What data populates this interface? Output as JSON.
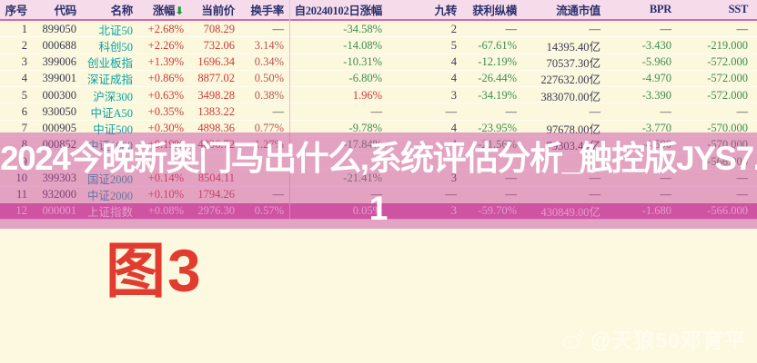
{
  "table": {
    "columns": [
      {
        "key": "seq",
        "label": "序号"
      },
      {
        "key": "code",
        "label": "代码"
      },
      {
        "key": "name",
        "label": "名称"
      },
      {
        "key": "chg",
        "label": "涨幅"
      },
      {
        "key": "price",
        "label": "当前价"
      },
      {
        "key": "turnover",
        "label": "换手率"
      },
      {
        "key": "ytd",
        "label": "自20240102日涨幅"
      },
      {
        "key": "nine",
        "label": "九转"
      },
      {
        "key": "profit",
        "label": "获利纵横"
      },
      {
        "key": "mcap",
        "label": "流通市值"
      },
      {
        "key": "bpr",
        "label": "BPR"
      },
      {
        "key": "sst",
        "label": "SST"
      }
    ],
    "sort_column": "chg",
    "sort_icon": "sort-descending-arrow-icon",
    "sort_icon_glyph": "⬇",
    "selected_seq": "12",
    "rows": [
      {
        "seq": "1",
        "code": "899050",
        "name": "北证50",
        "chg": "+2.68%",
        "price": "708.29",
        "turnover": "—",
        "ytd": "-34.58%",
        "nine": "2",
        "profit": "—",
        "mcap": "—",
        "bpr": "—",
        "sst": "—"
      },
      {
        "seq": "2",
        "code": "000688",
        "name": "科创50",
        "chg": "+2.26%",
        "price": "732.06",
        "turnover": "3.14%",
        "ytd": "-14.08%",
        "nine": "5",
        "profit": "-67.61%",
        "mcap": "14395.40亿",
        "bpr": "-3.430",
        "sst": "-219.000"
      },
      {
        "seq": "3",
        "code": "399006",
        "name": "创业板指",
        "chg": "+1.39%",
        "price": "1696.34",
        "turnover": "0.34%",
        "ytd": "-10.31%",
        "nine": "4",
        "profit": "-12.19%",
        "mcap": "70537.30亿",
        "bpr": "-5.960",
        "sst": "-572.000"
      },
      {
        "seq": "4",
        "code": "399001",
        "name": "深证成指",
        "chg": "+0.86%",
        "price": "8877.02",
        "turnover": "0.50%",
        "ytd": "-6.80%",
        "nine": "4",
        "profit": "-26.44%",
        "mcap": "227632.00亿",
        "bpr": "-4.970",
        "sst": "-572.000"
      },
      {
        "seq": "5",
        "code": "000300",
        "name": "沪深300",
        "chg": "+0.63%",
        "price": "3498.28",
        "turnover": "0.38%",
        "ytd": "1.96%",
        "nine": "3",
        "profit": "-34.19%",
        "mcap": "383070.00亿",
        "bpr": "-3.390",
        "sst": "-572.000"
      },
      {
        "seq": "6",
        "code": "930050",
        "name": "中证A50",
        "chg": "+0.35%",
        "price": "1383.22",
        "turnover": "—",
        "ytd": "—",
        "nine": "—",
        "profit": "—",
        "mcap": "—",
        "bpr": "—",
        "sst": "—"
      },
      {
        "seq": "7",
        "code": "000905",
        "name": "中证500",
        "chg": "+0.30%",
        "price": "4898.36",
        "turnover": "0.77%",
        "ytd": "-9.78%",
        "nine": "4",
        "profit": "-23.95%",
        "mcap": "97678.00亿",
        "bpr": "-3.770",
        "sst": "-570.000"
      },
      {
        "seq": "8",
        "code": "000852",
        "name": "中证1000",
        "chg": "+0.19%",
        "price": "4836.72",
        "turnover": "1.27%",
        "ytd": "-17.84%",
        "nine": "4",
        "profit": "-21.56%",
        "mcap": "79303.40亿",
        "bpr": "-4.590",
        "sst": "-570.000"
      },
      {
        "seq": "9",
        "code": "",
        "name": "",
        "chg": "",
        "price": "",
        "turnover": "",
        "ytd": "",
        "nine": "",
        "profit": "",
        "mcap": "",
        "bpr": "",
        "sst": "-566.000"
      },
      {
        "seq": "10",
        "code": "399303",
        "name": "国证2000",
        "chg": "+0.14%",
        "price": "8504.11",
        "turnover": "",
        "ytd": "-21.41%",
        "nine": "3",
        "profit": "—",
        "mcap": "—",
        "bpr": "—",
        "sst": "—"
      },
      {
        "seq": "11",
        "code": "932000",
        "name": "中证2000",
        "chg": "+0.10%",
        "price": "1794.26",
        "turnover": "—",
        "ytd": "—",
        "nine": "—",
        "profit": "—",
        "mcap": "—",
        "bpr": "—",
        "sst": "—"
      },
      {
        "seq": "12",
        "code": "000001",
        "name": "上证指数",
        "chg": "+0.08%",
        "price": "2976.30",
        "turnover": "0.57%",
        "ytd": "0.05%",
        "nine": "3",
        "profit": "-59.70%",
        "mcap": "430849.00亿",
        "bpr": "-1.680",
        "sst": "-566.000"
      }
    ]
  },
  "banner": {
    "full_text": "2024今晚新奥门马出什么,系统评估分析_触控版JYS7.61",
    "line1": "2024今晚新奥门马出什么,系统评估分析_触控版JYS7.6",
    "line2": "1"
  },
  "figure_label": "图3",
  "watermark": {
    "icon": "weibo-icon",
    "handle": "@天狼50邓育平"
  },
  "colors": {
    "page_bg": "#fcf9e0",
    "header_bg": "#f6dcea",
    "header_text": "#2b2f6e",
    "header_rule": "#d76ba2",
    "row_bg": "#fbf8dd",
    "selected_row_bg": "#d4619f",
    "overlay_pink": "rgba(200,70,160,0.48)",
    "up_red": "#cc3a3a",
    "down_green": "#3f8b54",
    "name_teal": "#0aa2a2",
    "sort_arrow_green": "#18a03c",
    "banner_text": "#ffffff",
    "figure_red": "#e23b30"
  }
}
